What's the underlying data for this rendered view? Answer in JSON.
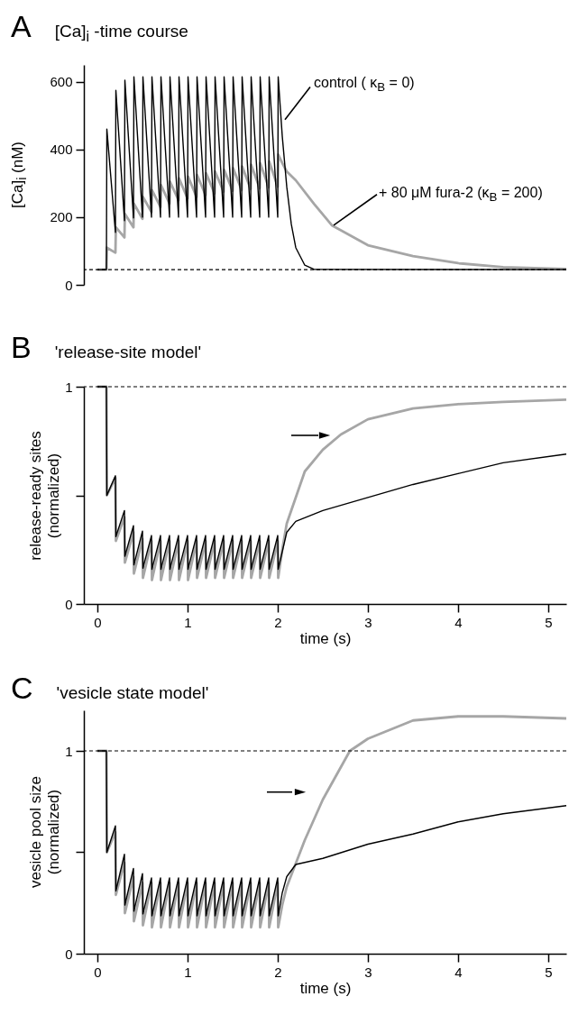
{
  "chart_data": [
    {
      "type": "line",
      "title": "[Ca]$_{i}$ -time course",
      "ylabel": "[Ca]$_{i}$ (nM)",
      "annotations": [
        "A"
      ],
      "xlim": [
        -0.15,
        5.2
      ],
      "ylim": [
        0,
        650
      ],
      "yticks": [
        0,
        200,
        400,
        600
      ],
      "tick_labels": "y",
      "ref_lines": [
        {
          "axis": "y",
          "value": 45,
          "line_style": "dashed",
          "color": "#000000"
        }
      ],
      "series": [
        {
          "name": "+ 80 μM fura-2 (κ$_{B}$ = 200)",
          "color": "#a6a6a6",
          "x": [
            0,
            0.1,
            0.105,
            0.2,
            0.205,
            0.3,
            0.305,
            0.4,
            0.405,
            0.5,
            0.505,
            0.6,
            0.605,
            0.7,
            0.705,
            0.8,
            0.805,
            0.9,
            0.905,
            1,
            1.005,
            1.1,
            1.105,
            1.2,
            1.205,
            1.3,
            1.305,
            1.4,
            1.405,
            1.5,
            1.505,
            1.6,
            1.605,
            1.7,
            1.705,
            1.8,
            1.805,
            1.9,
            1.905,
            2,
            2.005,
            2.05,
            2.1,
            2.2,
            2.4,
            2.6,
            3,
            3.5,
            4,
            4.5,
            5.2
          ],
          "values": [
            45,
            45,
            110,
            95,
            170,
            140,
            210,
            170,
            240,
            195,
            260,
            215,
            280,
            230,
            295,
            240,
            305,
            250,
            315,
            255,
            320,
            260,
            325,
            265,
            330,
            270,
            335,
            275,
            340,
            278,
            345,
            280,
            350,
            283,
            355,
            285,
            360,
            288,
            365,
            290,
            385,
            360,
            335,
            309,
            240,
            176,
            117,
            85,
            64,
            52,
            47
          ]
        },
        {
          "name": "control ( κ$_{B}$ = 0)",
          "color": "#000000",
          "x": [
            0,
            0.1,
            0.105,
            0.2,
            0.205,
            0.3,
            0.305,
            0.4,
            0.405,
            0.5,
            0.505,
            0.6,
            0.605,
            0.7,
            0.705,
            0.8,
            0.805,
            0.9,
            0.905,
            1,
            1.005,
            1.1,
            1.105,
            1.2,
            1.205,
            1.3,
            1.305,
            1.4,
            1.405,
            1.5,
            1.505,
            1.6,
            1.605,
            1.7,
            1.705,
            1.8,
            1.805,
            1.9,
            1.905,
            2,
            2.005,
            2.05,
            2.1,
            2.15,
            2.2,
            2.3,
            2.4,
            5.2
          ],
          "values": [
            45,
            45,
            460,
            155,
            575,
            190,
            605,
            198,
            615,
            200,
            615,
            200,
            615,
            200,
            615,
            200,
            615,
            200,
            615,
            200,
            615,
            200,
            615,
            200,
            615,
            200,
            615,
            200,
            615,
            200,
            615,
            200,
            615,
            200,
            615,
            200,
            615,
            200,
            615,
            200,
            615,
            440,
            290,
            180,
            110,
            58,
            46,
            45
          ]
        }
      ]
    },
    {
      "type": "line",
      "title": "'release-site model'",
      "ylabel": "release-ready sites (normalized)",
      "xlabel": "time (s)",
      "annotations": [
        "B"
      ],
      "xlim": [
        -0.15,
        5.2
      ],
      "ylim": [
        0,
        1
      ],
      "xticks": [
        0,
        1,
        2,
        3,
        4,
        5
      ],
      "yticks": [
        0,
        {
          "value": 0.5,
          "label": null
        },
        1
      ],
      "ref_lines": [
        {
          "axis": "y",
          "value": 1,
          "line_style": "dashed",
          "color": "#000000"
        }
      ],
      "series": [
        {
          "color": "#a6a6a6",
          "x": [
            0,
            0.1,
            0.105,
            0.2,
            0.205,
            0.3,
            0.305,
            0.4,
            0.405,
            0.5,
            0.505,
            0.6,
            0.605,
            0.7,
            0.705,
            0.8,
            0.805,
            0.9,
            0.905,
            1,
            1.005,
            1.1,
            1.105,
            1.2,
            1.205,
            1.3,
            1.305,
            1.4,
            1.405,
            1.5,
            1.505,
            1.6,
            1.605,
            1.7,
            1.705,
            1.8,
            1.805,
            1.9,
            1.905,
            2,
            2.005,
            2.05,
            2.1,
            2.3,
            2.5,
            2.7,
            3,
            3.5,
            4,
            4.5,
            5.2
          ],
          "values": [
            1,
            1,
            0.5,
            0.58,
            0.29,
            0.4,
            0.19,
            0.33,
            0.14,
            0.3,
            0.12,
            0.29,
            0.11,
            0.29,
            0.11,
            0.29,
            0.11,
            0.29,
            0.11,
            0.29,
            0.11,
            0.29,
            0.12,
            0.29,
            0.12,
            0.29,
            0.12,
            0.29,
            0.12,
            0.29,
            0.12,
            0.29,
            0.12,
            0.29,
            0.12,
            0.29,
            0.12,
            0.29,
            0.12,
            0.29,
            0.12,
            0.25,
            0.37,
            0.61,
            0.71,
            0.78,
            0.85,
            0.9,
            0.92,
            0.93,
            0.94
          ]
        },
        {
          "color": "#000000",
          "x": [
            0,
            0.1,
            0.105,
            0.2,
            0.205,
            0.3,
            0.305,
            0.4,
            0.405,
            0.5,
            0.505,
            0.6,
            0.605,
            0.7,
            0.705,
            0.8,
            0.805,
            0.9,
            0.905,
            1,
            1.005,
            1.1,
            1.105,
            1.2,
            1.205,
            1.3,
            1.305,
            1.4,
            1.405,
            1.5,
            1.505,
            1.6,
            1.605,
            1.7,
            1.705,
            1.8,
            1.805,
            1.9,
            1.905,
            2,
            2.005,
            2.05,
            2.1,
            2.2,
            2.5,
            3,
            3.5,
            4,
            4.5,
            5.2
          ],
          "values": [
            1,
            1,
            0.5,
            0.59,
            0.31,
            0.43,
            0.22,
            0.36,
            0.18,
            0.335,
            0.165,
            0.315,
            0.16,
            0.315,
            0.16,
            0.315,
            0.16,
            0.315,
            0.16,
            0.315,
            0.16,
            0.315,
            0.16,
            0.315,
            0.16,
            0.315,
            0.16,
            0.315,
            0.16,
            0.315,
            0.16,
            0.315,
            0.16,
            0.315,
            0.16,
            0.315,
            0.16,
            0.315,
            0.16,
            0.315,
            0.16,
            0.24,
            0.33,
            0.38,
            0.43,
            0.49,
            0.55,
            0.6,
            0.65,
            0.69
          ]
        }
      ]
    },
    {
      "type": "line",
      "title": "'vesicle state model'",
      "ylabel": "vesicle pool size (normalized)",
      "xlabel": "time (s)",
      "annotations": [
        "C"
      ],
      "xlim": [
        -0.15,
        5.2
      ],
      "ylim": [
        0,
        1.2
      ],
      "xticks": [
        0,
        1,
        2,
        3,
        4,
        5
      ],
      "yticks": [
        0,
        {
          "value": 0.5,
          "label": null
        },
        1
      ],
      "ref_lines": [
        {
          "axis": "y",
          "value": 1,
          "line_style": "dashed",
          "color": "#000000"
        }
      ],
      "series": [
        {
          "color": "#a6a6a6",
          "x": [
            0,
            0.1,
            0.105,
            0.2,
            0.205,
            0.3,
            0.305,
            0.4,
            0.405,
            0.5,
            0.505,
            0.6,
            0.605,
            0.7,
            0.705,
            0.8,
            0.805,
            0.9,
            0.905,
            1,
            1.005,
            1.1,
            1.105,
            1.2,
            1.205,
            1.3,
            1.305,
            1.4,
            1.405,
            1.5,
            1.505,
            1.6,
            1.605,
            1.7,
            1.705,
            1.8,
            1.805,
            1.9,
            1.905,
            2,
            2.005,
            2.05,
            2.1,
            2.3,
            2.5,
            2.7,
            2.8,
            3,
            3.5,
            4,
            4.5,
            5.2
          ],
          "values": [
            1,
            1,
            0.5,
            0.6,
            0.29,
            0.45,
            0.2,
            0.38,
            0.16,
            0.35,
            0.14,
            0.35,
            0.13,
            0.35,
            0.13,
            0.35,
            0.13,
            0.35,
            0.13,
            0.35,
            0.13,
            0.35,
            0.13,
            0.35,
            0.13,
            0.35,
            0.13,
            0.35,
            0.13,
            0.35,
            0.13,
            0.35,
            0.13,
            0.35,
            0.13,
            0.35,
            0.13,
            0.35,
            0.13,
            0.35,
            0.13,
            0.24,
            0.33,
            0.56,
            0.76,
            0.92,
            1,
            1.06,
            1.15,
            1.17,
            1.17,
            1.16
          ]
        },
        {
          "color": "#000000",
          "x": [
            0,
            0.1,
            0.105,
            0.2,
            0.205,
            0.3,
            0.305,
            0.4,
            0.405,
            0.5,
            0.505,
            0.6,
            0.605,
            0.7,
            0.705,
            0.8,
            0.805,
            0.9,
            0.905,
            1,
            1.005,
            1.1,
            1.105,
            1.2,
            1.205,
            1.3,
            1.305,
            1.4,
            1.405,
            1.5,
            1.505,
            1.6,
            1.605,
            1.7,
            1.705,
            1.8,
            1.805,
            1.9,
            1.905,
            2,
            2.005,
            2.05,
            2.1,
            2.2,
            2.5,
            3,
            3.5,
            4,
            4.5,
            5.2
          ],
          "values": [
            1,
            1,
            0.5,
            0.63,
            0.31,
            0.49,
            0.24,
            0.42,
            0.21,
            0.395,
            0.196,
            0.374,
            0.187,
            0.374,
            0.187,
            0.374,
            0.187,
            0.374,
            0.187,
            0.374,
            0.187,
            0.374,
            0.187,
            0.374,
            0.187,
            0.374,
            0.187,
            0.374,
            0.187,
            0.374,
            0.187,
            0.374,
            0.187,
            0.374,
            0.187,
            0.374,
            0.187,
            0.374,
            0.187,
            0.374,
            0.187,
            0.3,
            0.38,
            0.44,
            0.47,
            0.54,
            0.59,
            0.65,
            0.69,
            0.73
          ]
        }
      ]
    }
  ]
}
